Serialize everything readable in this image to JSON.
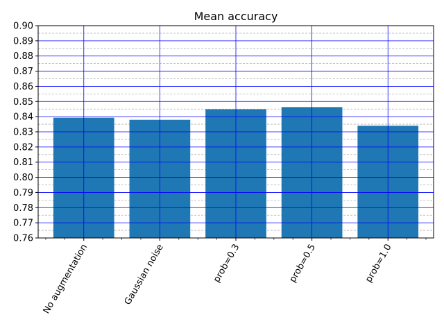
{
  "chart_data": {
    "type": "bar",
    "title": "Mean accuracy",
    "xlabel": "",
    "ylabel": "",
    "categories": [
      "No augmentation",
      "Gaussian noise",
      "prob=0.3",
      "prob=0.5",
      "prob=1.0"
    ],
    "values": [
      0.8393,
      0.8379,
      0.8449,
      0.8463,
      0.834
    ],
    "ylim": [
      0.76,
      0.9
    ],
    "yticks": [
      "0.76",
      "0.77",
      "0.78",
      "0.79",
      "0.80",
      "0.81",
      "0.82",
      "0.83",
      "0.84",
      "0.85",
      "0.86",
      "0.87",
      "0.88",
      "0.89",
      "0.90"
    ],
    "yminor_step": 0.005,
    "major_grid": true,
    "minor_grid": true,
    "colors": {
      "bar": "#1f77b4",
      "major_grid": "#0000ff",
      "minor_grid": "#b0b0b0",
      "axis": "#000000"
    }
  }
}
